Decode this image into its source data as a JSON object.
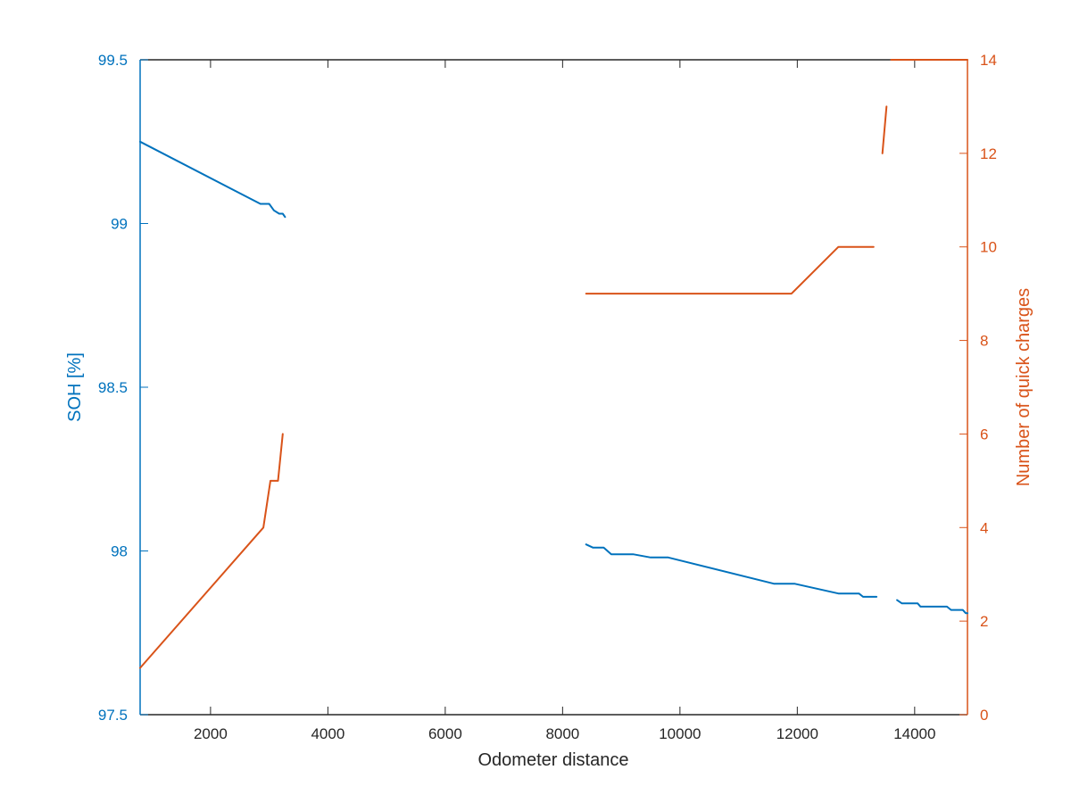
{
  "chart_data": {
    "type": "line",
    "xlabel": "Odometer distance",
    "ylabel_left": "SOH [%]",
    "ylabel_right": "Number of quick charges",
    "xlim": [
      800,
      14900
    ],
    "ylim_left": [
      97.5,
      99.5
    ],
    "ylim_right": [
      0,
      14
    ],
    "x_ticks": [
      2000,
      4000,
      6000,
      8000,
      10000,
      12000,
      14000
    ],
    "y_left_ticks": [
      97.5,
      98,
      98.5,
      99,
      99.5
    ],
    "y_right_ticks": [
      0,
      2,
      4,
      6,
      8,
      10,
      12,
      14
    ],
    "grid": false,
    "colors": {
      "left": "#0072BD",
      "right": "#D95319",
      "axis": "#262626"
    },
    "series": [
      {
        "axis": "left",
        "segments": [
          [
            [
              800,
              99.25
            ],
            [
              2850,
              99.06
            ],
            [
              3000,
              99.06
            ],
            [
              3080,
              99.04
            ],
            [
              3170,
              99.03
            ],
            [
              3230,
              99.03
            ],
            [
              3270,
              99.02
            ]
          ],
          [
            [
              8400,
              98.02
            ],
            [
              8520,
              98.01
            ],
            [
              8700,
              98.01
            ],
            [
              8830,
              97.99
            ],
            [
              9200,
              97.99
            ],
            [
              9500,
              97.98
            ],
            [
              9800,
              97.98
            ],
            [
              11600,
              97.9
            ],
            [
              11950,
              97.9
            ],
            [
              12700,
              97.87
            ],
            [
              13050,
              97.87
            ],
            [
              13120,
              97.86
            ],
            [
              13350,
              97.86
            ]
          ],
          [
            [
              13700,
              97.85
            ],
            [
              13780,
              97.84
            ],
            [
              14050,
              97.84
            ],
            [
              14100,
              97.83
            ],
            [
              14550,
              97.83
            ],
            [
              14620,
              97.82
            ],
            [
              14820,
              97.82
            ],
            [
              14870,
              97.81
            ],
            [
              14900,
              97.81
            ]
          ]
        ]
      },
      {
        "axis": "right",
        "segments": [
          [
            [
              800,
              1
            ],
            [
              2900,
              4
            ],
            [
              3020,
              5
            ],
            [
              3150,
              5
            ],
            [
              3230,
              6
            ]
          ],
          [
            [
              8400,
              9
            ],
            [
              11900,
              9
            ],
            [
              12700,
              10
            ],
            [
              13300,
              10
            ]
          ],
          [
            [
              13450,
              12
            ],
            [
              13520,
              13
            ]
          ],
          [
            [
              13600,
              14
            ],
            [
              14900,
              14
            ]
          ]
        ]
      }
    ]
  }
}
